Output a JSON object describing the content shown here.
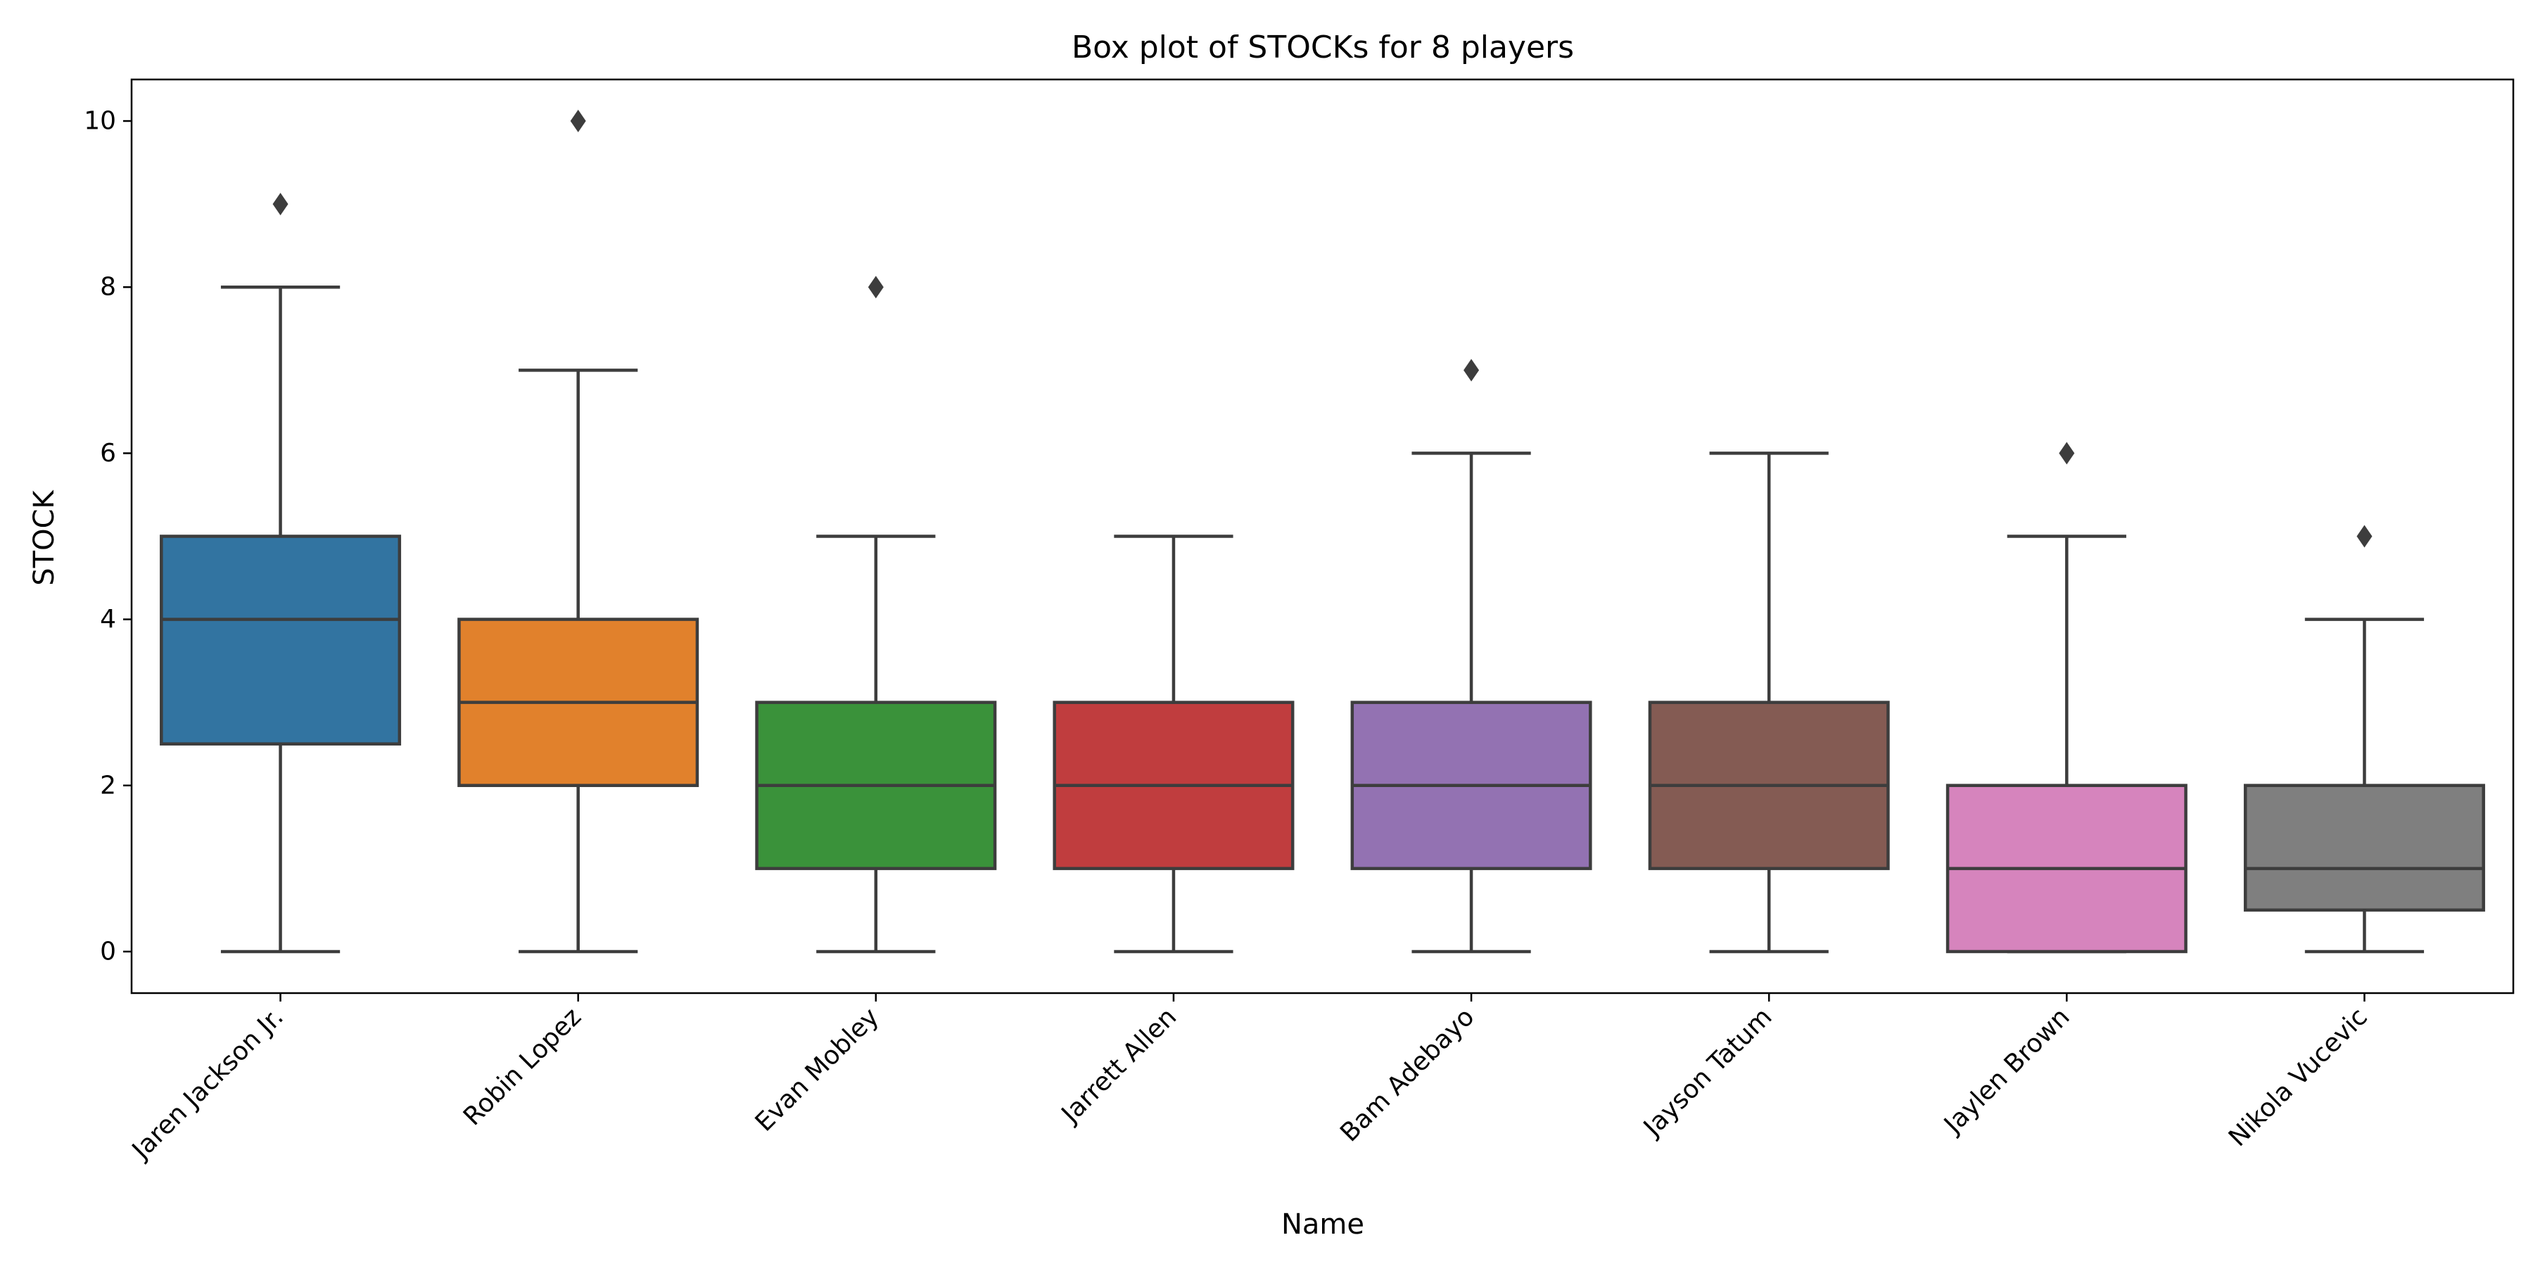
{
  "chart_data": {
    "type": "box",
    "title": "Box plot of STOCKs for 8 players",
    "xlabel": "Name",
    "ylabel": "STOCK",
    "ylim": [
      -0.5,
      10.5
    ],
    "yticks": [
      0,
      2,
      4,
      6,
      8,
      10
    ],
    "grid": false,
    "legend": "none",
    "categories": [
      "Jaren Jackson Jr.",
      "Robin Lopez",
      "Evan Mobley",
      "Jarrett Allen",
      "Bam Adebayo",
      "Jayson Tatum",
      "Jaylen Brown",
      "Nikola Vucevic"
    ],
    "boxes": [
      {
        "name": "Jaren Jackson Jr.",
        "whisker_low": 0,
        "q1": 2.5,
        "median": 4,
        "q3": 5,
        "whisker_high": 8,
        "outliers": [
          9
        ],
        "color": "#3274a1"
      },
      {
        "name": "Robin Lopez",
        "whisker_low": 0,
        "q1": 2,
        "median": 3,
        "q3": 4,
        "whisker_high": 7,
        "outliers": [
          10
        ],
        "color": "#e1812c"
      },
      {
        "name": "Evan Mobley",
        "whisker_low": 0,
        "q1": 1,
        "median": 2,
        "q3": 3,
        "whisker_high": 5,
        "outliers": [
          8
        ],
        "color": "#3a923a"
      },
      {
        "name": "Jarrett Allen",
        "whisker_low": 0,
        "q1": 1,
        "median": 2,
        "q3": 3,
        "whisker_high": 5,
        "outliers": [],
        "color": "#c03d3e"
      },
      {
        "name": "Bam Adebayo",
        "whisker_low": 0,
        "q1": 1,
        "median": 2,
        "q3": 3,
        "whisker_high": 6,
        "outliers": [
          7
        ],
        "color": "#9372b2"
      },
      {
        "name": "Jayson Tatum",
        "whisker_low": 0,
        "q1": 1,
        "median": 2,
        "q3": 3,
        "whisker_high": 6,
        "outliers": [],
        "color": "#845b53"
      },
      {
        "name": "Jaylen Brown",
        "whisker_low": 0,
        "q1": 0,
        "median": 1,
        "q3": 2,
        "whisker_high": 5,
        "outliers": [
          6
        ],
        "color": "#d684bd"
      },
      {
        "name": "Nikola Vucevic",
        "whisker_low": 0,
        "q1": 0.5,
        "median": 1,
        "q3": 2,
        "whisker_high": 4,
        "outliers": [
          5
        ],
        "color": "#7f7f7f"
      }
    ],
    "line_color": "#3d3d3d"
  }
}
